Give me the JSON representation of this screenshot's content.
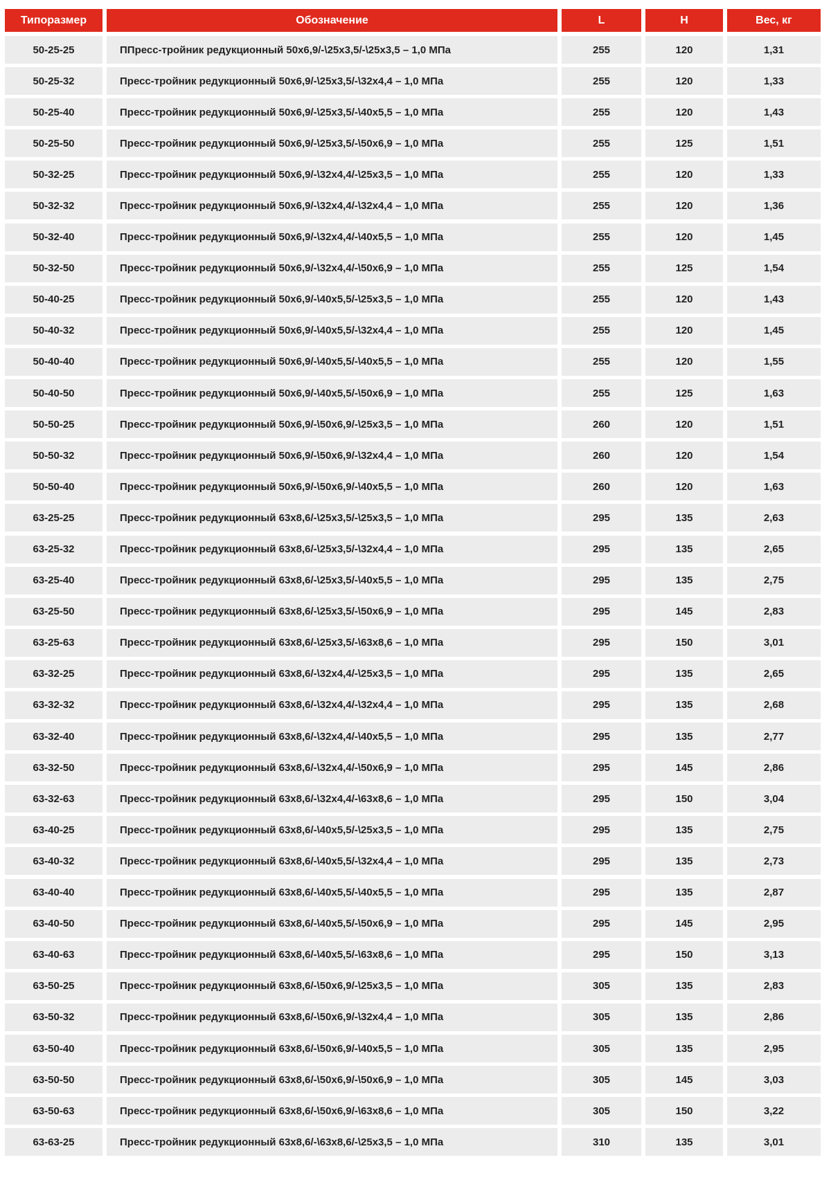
{
  "header": {
    "size": "Типоразмер",
    "designation": "Обозначение",
    "L": "L",
    "H": "H",
    "weight": "Вес, кг"
  },
  "colors": {
    "header_bg": "#df2a1d",
    "row_bg": "#ececec"
  },
  "rows": [
    [
      "50-25-25",
      "ППресс-тройник редукционный 50x6,9/-\\25x3,5/-\\25x3,5 – 1,0 МПа",
      "255",
      "120",
      "1,31"
    ],
    [
      "50-25-32",
      "Пресс-тройник редукционный 50x6,9/-\\25x3,5/-\\32x4,4 – 1,0 МПа",
      "255",
      "120",
      "1,33"
    ],
    [
      "50-25-40",
      "Пресс-тройник редукционный 50x6,9/-\\25x3,5/-\\40x5,5 – 1,0 МПа",
      "255",
      "120",
      "1,43"
    ],
    [
      "50-25-50",
      "Пресс-тройник редукционный 50x6,9/-\\25x3,5/-\\50x6,9 – 1,0 МПа",
      "255",
      "125",
      "1,51"
    ],
    [
      "50-32-25",
      "Пресс-тройник редукционный 50x6,9/-\\32x4,4/-\\25x3,5 – 1,0 МПа",
      "255",
      "120",
      "1,33"
    ],
    [
      "50-32-32",
      "Пресс-тройник редукционный 50x6,9/-\\32x4,4/-\\32x4,4 – 1,0 МПа",
      "255",
      "120",
      "1,36"
    ],
    [
      "50-32-40",
      "Пресс-тройник редукционный 50x6,9/-\\32x4,4/-\\40x5,5 – 1,0 МПа",
      "255",
      "120",
      "1,45"
    ],
    [
      "50-32-50",
      "Пресс-тройник редукционный 50x6,9/-\\32x4,4/-\\50x6,9 – 1,0 МПа",
      "255",
      "125",
      "1,54"
    ],
    [
      "50-40-25",
      "Пресс-тройник редукционный 50x6,9/-\\40x5,5/-\\25x3,5 – 1,0 МПа",
      "255",
      "120",
      "1,43"
    ],
    [
      "50-40-32",
      "Пресс-тройник редукционный 50x6,9/-\\40x5,5/-\\32x4,4 – 1,0 МПа",
      "255",
      "120",
      "1,45"
    ],
    [
      "50-40-40",
      "Пресс-тройник редукционный 50x6,9/-\\40x5,5/-\\40x5,5 – 1,0 МПа",
      "255",
      "120",
      "1,55"
    ],
    [
      "50-40-50",
      "Пресс-тройник редукционный 50x6,9/-\\40x5,5/-\\50x6,9 – 1,0 МПа",
      "255",
      "125",
      "1,63"
    ],
    [
      "50-50-25",
      "Пресс-тройник редукционный 50x6,9/-\\50x6,9/-\\25x3,5 – 1,0 МПа",
      "260",
      "120",
      "1,51"
    ],
    [
      "50-50-32",
      "Пресс-тройник редукционный 50x6,9/-\\50x6,9/-\\32x4,4 – 1,0 МПа",
      "260",
      "120",
      "1,54"
    ],
    [
      "50-50-40",
      "Пресс-тройник редукционный 50x6,9/-\\50x6,9/-\\40x5,5 – 1,0 МПа",
      "260",
      "120",
      "1,63"
    ],
    [
      "63-25-25",
      "Пресс-тройник редукционный 63x8,6/-\\25x3,5/-\\25x3,5 – 1,0 МПа",
      "295",
      "135",
      "2,63"
    ],
    [
      "63-25-32",
      "Пресс-тройник редукционный 63x8,6/-\\25x3,5/-\\32x4,4 – 1,0 МПа",
      "295",
      "135",
      "2,65"
    ],
    [
      "63-25-40",
      "Пресс-тройник редукционный 63x8,6/-\\25x3,5/-\\40x5,5 – 1,0 МПа",
      "295",
      "135",
      "2,75"
    ],
    [
      "63-25-50",
      "Пресс-тройник редукционный 63x8,6/-\\25x3,5/-\\50x6,9 – 1,0 МПа",
      "295",
      "145",
      "2,83"
    ],
    [
      "63-25-63",
      "Пресс-тройник редукционный 63x8,6/-\\25x3,5/-\\63x8,6 – 1,0 МПа",
      "295",
      "150",
      "3,01"
    ],
    [
      "63-32-25",
      "Пресс-тройник редукционный 63x8,6/-\\32x4,4/-\\25x3,5 – 1,0 МПа",
      "295",
      "135",
      "2,65"
    ],
    [
      "63-32-32",
      "Пресс-тройник редукционный 63x8,6/-\\32x4,4/-\\32x4,4 – 1,0 МПа",
      "295",
      "135",
      "2,68"
    ],
    [
      "63-32-40",
      "Пресс-тройник редукционный 63x8,6/-\\32x4,4/-\\40x5,5 – 1,0 МПа",
      "295",
      "135",
      "2,77"
    ],
    [
      "63-32-50",
      "Пресс-тройник редукционный 63x8,6/-\\32x4,4/-\\50x6,9 – 1,0 МПа",
      "295",
      "145",
      "2,86"
    ],
    [
      "63-32-63",
      "Пресс-тройник редукционный 63x8,6/-\\32x4,4/-\\63x8,6 – 1,0 МПа",
      "295",
      "150",
      "3,04"
    ],
    [
      "63-40-25",
      "Пресс-тройник редукционный 63x8,6/-\\40x5,5/-\\25x3,5 – 1,0 МПа",
      "295",
      "135",
      "2,75"
    ],
    [
      "63-40-32",
      "Пресс-тройник редукционный 63x8,6/-\\40x5,5/-\\32x4,4 – 1,0 МПа",
      "295",
      "135",
      "2,73"
    ],
    [
      "63-40-40",
      "Пресс-тройник редукционный 63x8,6/-\\40x5,5/-\\40x5,5 – 1,0 МПа",
      "295",
      "135",
      "2,87"
    ],
    [
      "63-40-50",
      "Пресс-тройник редукционный 63x8,6/-\\40x5,5/-\\50x6,9 – 1,0 МПа",
      "295",
      "145",
      "2,95"
    ],
    [
      "63-40-63",
      "Пресс-тройник редукционный 63x8,6/-\\40x5,5/-\\63x8,6 – 1,0 МПа",
      "295",
      "150",
      "3,13"
    ],
    [
      "63-50-25",
      "Пресс-тройник редукционный 63x8,6/-\\50x6,9/-\\25x3,5 – 1,0 МПа",
      "305",
      "135",
      "2,83"
    ],
    [
      "63-50-32",
      "Пресс-тройник редукционный 63x8,6/-\\50x6,9/-\\32x4,4 – 1,0 МПа",
      "305",
      "135",
      "2,86"
    ],
    [
      "63-50-40",
      "Пресс-тройник редукционный 63x8,6/-\\50x6,9/-\\40x5,5 – 1,0 МПа",
      "305",
      "135",
      "2,95"
    ],
    [
      "63-50-50",
      "Пресс-тройник редукционный 63x8,6/-\\50x6,9/-\\50x6,9 – 1,0 МПа",
      "305",
      "145",
      "3,03"
    ],
    [
      "63-50-63",
      "Пресс-тройник редукционный 63x8,6/-\\50x6,9/-\\63x8,6 – 1,0 МПа",
      "305",
      "150",
      "3,22"
    ],
    [
      "63-63-25",
      "Пресс-тройник редукционный 63x8,6/-\\63x8,6/-\\25x3,5 – 1,0 МПа",
      "310",
      "135",
      "3,01"
    ]
  ]
}
